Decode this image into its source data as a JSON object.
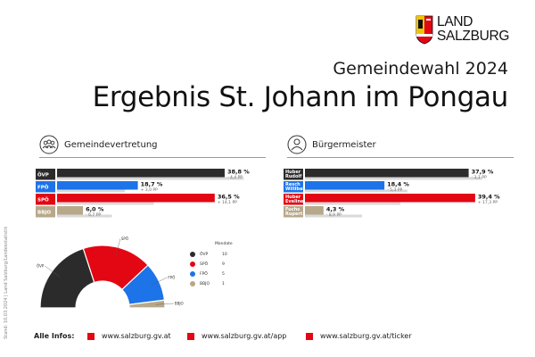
{
  "header": {
    "logo_line1": "LAND",
    "logo_line2": "SALZBURG",
    "subtitle": "Gemeindewahl 2024",
    "title": "Ergebnis St. Johann im Pongau"
  },
  "side_note": "Stand: 10.03.2024 | Land Salzburg/Landesstatistik",
  "sections": {
    "council_label": "Gemeindevertretung",
    "mayor_label": "Bürgermeister"
  },
  "chart_data": [
    {
      "type": "bar",
      "title": "Gemeindevertretung",
      "categories": [
        "ÖVP",
        "FPÖ",
        "SPÖ",
        "BBJO"
      ],
      "values": [
        38.8,
        18.7,
        36.5,
        6.0
      ],
      "value_labels": [
        "38,8 %",
        "18,7 %",
        "36,5 %",
        "6,0 %"
      ],
      "change_labels": [
        "- 4,4 PP",
        "+ 3,0 PP",
        "+ 14,1 PP",
        "- 6,7 PP"
      ],
      "changes": [
        -4.4,
        3.0,
        14.1,
        -6.7
      ],
      "colors": [
        "#2b2b2b",
        "#1d73e8",
        "#e30613",
        "#b8a88a"
      ],
      "xlim": [
        0,
        45
      ]
    },
    {
      "type": "bar",
      "title": "Bürgermeister",
      "categories": [
        "Huber Rudolf",
        "Resch Willibald",
        "Huber Eveline",
        "Fuchs Rupert"
      ],
      "category_lines": [
        [
          "Huber",
          "Rudolf"
        ],
        [
          "Resch",
          "Willibald"
        ],
        [
          "Huber",
          "Eveline"
        ],
        [
          "Fuchs",
          "Rupert"
        ]
      ],
      "values": [
        37.9,
        18.4,
        39.4,
        4.3
      ],
      "value_labels": [
        "37,9 %",
        "18,4 %",
        "39,4 %",
        "4,3 %"
      ],
      "change_labels": [
        "- 3,1 PP",
        "- 5,3 PP",
        "+ 17,3 PP",
        "- 8,9 PP"
      ],
      "changes": [
        -3.1,
        -5.3,
        17.3,
        -8.9
      ],
      "colors": [
        "#2b2b2b",
        "#1d73e8",
        "#e30613",
        "#b8a88a"
      ],
      "xlim": [
        0,
        45
      ]
    },
    {
      "type": "pie",
      "subtype": "parliament-semicircle",
      "title": "Mandate",
      "categories": [
        "ÖVP",
        "SPÖ",
        "FPÖ",
        "BBJO"
      ],
      "values": [
        10,
        9,
        5,
        1
      ],
      "colors": [
        "#2b2b2b",
        "#e30613",
        "#1d73e8",
        "#b8a88a"
      ],
      "slice_labels": [
        "ÖVP",
        "SPÖ",
        "FPÖ",
        "BBJO"
      ]
    }
  ],
  "legend": {
    "header": "Mandate",
    "items": [
      {
        "name": "ÖVP",
        "seats": "10",
        "color": "#2b2b2b"
      },
      {
        "name": "SPÖ",
        "seats": "9",
        "color": "#e30613"
      },
      {
        "name": "FPÖ",
        "seats": "5",
        "color": "#1d73e8"
      },
      {
        "name": "BBJO",
        "seats": "1",
        "color": "#b8a88a"
      }
    ]
  },
  "footer": {
    "label": "Alle Infos:",
    "links": [
      "www.salzburg.gv.at",
      "www.salzburg.gv.at/app",
      "www.salzburg.gv.at/ticker"
    ],
    "accent_color": "#e30613"
  }
}
